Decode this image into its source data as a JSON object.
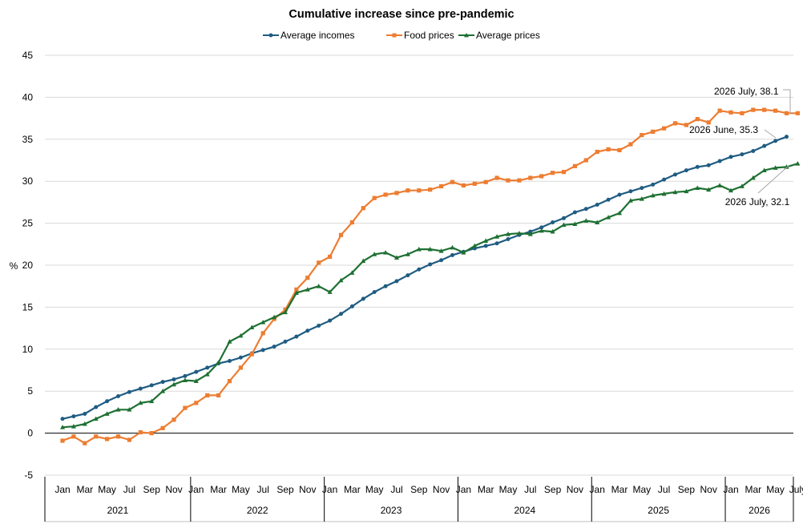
{
  "chart_data": {
    "type": "line",
    "title": "Cumulative increase since pre-pandemic",
    "ylabel": "%",
    "ylim": [
      -5,
      45
    ],
    "y_ticks": [
      -5,
      0,
      5,
      10,
      15,
      20,
      25,
      30,
      35,
      40,
      45
    ],
    "grid": "horizontal",
    "legend": "top-center",
    "x_tick_labels": [
      "Jan",
      "Mar",
      "May",
      "Jul",
      "Sep",
      "Nov",
      "Jan",
      "Mar",
      "May",
      "Jul",
      "Sep",
      "Nov",
      "Jan",
      "Mar",
      "May",
      "Jul",
      "Sep",
      "Nov",
      "Jan",
      "Mar",
      "May",
      "Jul",
      "Sep",
      "Nov",
      "Jan",
      "Mar",
      "May",
      "Jul",
      "Sep",
      "Nov",
      "Jan",
      "Mar",
      "May",
      "July"
    ],
    "years": [
      {
        "label": "2021",
        "months": 12
      },
      {
        "label": "2022",
        "months": 12
      },
      {
        "label": "2023",
        "months": 12
      },
      {
        "label": "2024",
        "months": 12
      },
      {
        "label": "2025",
        "months": 12
      },
      {
        "label": "2026",
        "months": 7
      }
    ],
    "series": [
      {
        "name": "Average incomes",
        "color": "#1f5c82",
        "marker": "circle",
        "values": [
          1.7,
          2.0,
          2.3,
          3.1,
          3.8,
          4.4,
          4.9,
          5.3,
          5.7,
          6.1,
          6.4,
          6.8,
          7.3,
          7.8,
          8.3,
          8.6,
          9.0,
          9.5,
          9.9,
          10.3,
          10.9,
          11.5,
          12.2,
          12.8,
          13.4,
          14.2,
          15.1,
          16.0,
          16.8,
          17.5,
          18.1,
          18.8,
          19.5,
          20.1,
          20.6,
          21.2,
          21.6,
          22.0,
          22.3,
          22.6,
          23.1,
          23.6,
          24.0,
          24.5,
          25.1,
          25.6,
          26.3,
          26.7,
          27.2,
          27.8,
          28.4,
          28.8,
          29.2,
          29.6,
          30.2,
          30.8,
          31.3,
          31.7,
          31.9,
          32.4,
          32.9,
          33.2,
          33.6,
          34.2,
          34.8,
          35.3,
          null
        ]
      },
      {
        "name": "Food prices",
        "color": "#ed7d31",
        "marker": "square",
        "values": [
          -0.9,
          -0.4,
          -1.2,
          -0.4,
          -0.7,
          -0.4,
          -0.8,
          0.1,
          0.0,
          0.6,
          1.6,
          3.0,
          3.6,
          4.5,
          4.5,
          6.2,
          7.8,
          9.4,
          11.9,
          13.6,
          14.7,
          17.1,
          18.5,
          20.3,
          21.0,
          23.6,
          25.1,
          26.8,
          28.0,
          28.4,
          28.6,
          28.9,
          28.9,
          29.0,
          29.4,
          29.9,
          29.5,
          29.7,
          29.9,
          30.4,
          30.1,
          30.1,
          30.4,
          30.6,
          31.0,
          31.1,
          31.8,
          32.5,
          33.5,
          33.8,
          33.7,
          34.4,
          35.5,
          35.9,
          36.3,
          36.9,
          36.7,
          37.4,
          37.0,
          38.4,
          38.2,
          38.1,
          38.5,
          38.5,
          38.4,
          38.1,
          38.1
        ]
      },
      {
        "name": "Average prices",
        "color": "#1e7032",
        "marker": "triangle",
        "values": [
          0.7,
          0.8,
          1.1,
          1.7,
          2.3,
          2.8,
          2.8,
          3.6,
          3.8,
          5.0,
          5.8,
          6.3,
          6.2,
          7.0,
          8.4,
          10.9,
          11.6,
          12.6,
          13.2,
          13.8,
          14.4,
          16.7,
          17.1,
          17.5,
          16.8,
          18.2,
          19.1,
          20.5,
          21.3,
          21.5,
          20.9,
          21.3,
          21.9,
          21.9,
          21.7,
          22.1,
          21.5,
          22.3,
          22.9,
          23.4,
          23.7,
          23.8,
          23.7,
          24.1,
          24.0,
          24.8,
          24.9,
          25.3,
          25.1,
          25.7,
          26.2,
          27.7,
          27.9,
          28.3,
          28.5,
          28.7,
          28.8,
          29.2,
          29.0,
          29.5,
          28.9,
          29.4,
          30.4,
          31.3,
          31.6,
          31.7,
          32.1
        ]
      }
    ],
    "annotations": [
      {
        "text": "2026 July, 38.1",
        "series": 1,
        "index": 66
      },
      {
        "text": "2026 June, 35.3",
        "series": 0,
        "index": 65
      },
      {
        "text": "2026 July, 32.1",
        "series": 2,
        "index": 66
      }
    ]
  }
}
